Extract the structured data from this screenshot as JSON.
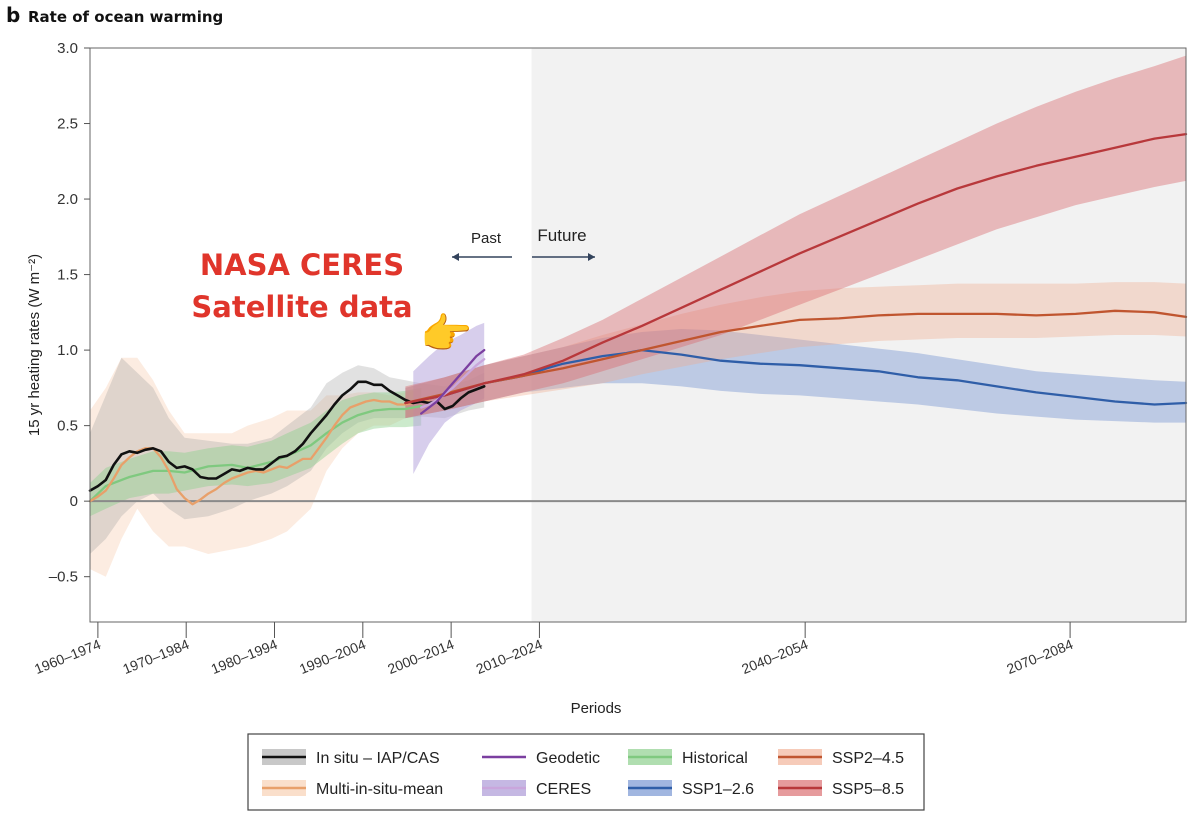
{
  "panel": {
    "letter": "b",
    "title": "Rate of ocean warming"
  },
  "chart_data": {
    "type": "line",
    "title": "Rate of ocean warming",
    "xlabel": "Periods",
    "ylabel": "15 yr heating rates (W m⁻²)",
    "ylim": [
      -0.8,
      3.0
    ],
    "xlim": [
      1960,
      2099
    ],
    "y_ticks": [
      3.0,
      2.5,
      2.0,
      1.5,
      1.0,
      0.5,
      0,
      -0.5
    ],
    "y_tick_labels": [
      "3.0",
      "2.5",
      "2.0",
      "1.5",
      "1.0",
      "0.5",
      "0",
      "–0.5"
    ],
    "x_ticks": [
      {
        "label": "1960–1974",
        "x": 1961
      },
      {
        "label": "1970–1984",
        "x": 1972.2
      },
      {
        "label": "1980–1994",
        "x": 1983.4
      },
      {
        "label": "1990–2004",
        "x": 1994.6
      },
      {
        "label": "2000–2014",
        "x": 2005.8
      },
      {
        "label": "2010–2024",
        "x": 2017
      },
      {
        "label": "2040–2054",
        "x": 2050.7
      },
      {
        "label": "2070–2084",
        "x": 2084.3
      }
    ],
    "future_shading_start": 2016,
    "zero_line": 0,
    "series": [
      {
        "name": "In situ – IAP/CAS",
        "key": "insitu",
        "color": "#111111",
        "x": [
          1960,
          1961,
          1962,
          1963,
          1964,
          1965,
          1966,
          1967,
          1968,
          1969,
          1970,
          1971,
          1972,
          1973,
          1974,
          1975,
          1976,
          1977,
          1978,
          1979,
          1980,
          1981,
          1982,
          1983,
          1984,
          1985,
          1986,
          1987,
          1988,
          1989,
          1990,
          1991,
          1992,
          1993,
          1994,
          1995,
          1996,
          1997,
          1998,
          1999,
          2000,
          2001,
          2002,
          2003,
          2004,
          2005,
          2006,
          2007,
          2008,
          2009,
          2010
        ],
        "values": [
          0.07,
          0.1,
          0.14,
          0.24,
          0.31,
          0.33,
          0.32,
          0.34,
          0.35,
          0.33,
          0.26,
          0.22,
          0.23,
          0.21,
          0.16,
          0.15,
          0.15,
          0.18,
          0.21,
          0.2,
          0.22,
          0.21,
          0.21,
          0.25,
          0.29,
          0.3,
          0.33,
          0.38,
          0.45,
          0.51,
          0.57,
          0.64,
          0.7,
          0.74,
          0.79,
          0.79,
          0.77,
          0.77,
          0.73,
          0.7,
          0.67,
          0.65,
          0.66,
          0.65,
          0.66,
          0.61,
          0.63,
          0.68,
          0.72,
          0.74,
          0.76
        ]
      },
      {
        "name": "Multi-in-situ-mean",
        "key": "multi",
        "color": "#e8a06a",
        "x": [
          1960,
          1961,
          1962,
          1963,
          1964,
          1965,
          1966,
          1967,
          1968,
          1969,
          1970,
          1971,
          1972,
          1973,
          1974,
          1975,
          1976,
          1977,
          1978,
          1979,
          1980,
          1981,
          1982,
          1983,
          1984,
          1985,
          1986,
          1987,
          1988,
          1989,
          1990,
          1991,
          1992,
          1993,
          1994,
          1995,
          1996,
          1997,
          1998,
          1999,
          2000,
          2001,
          2002,
          2003
        ],
        "values": [
          0.0,
          0.03,
          0.07,
          0.15,
          0.24,
          0.29,
          0.33,
          0.35,
          0.35,
          0.29,
          0.2,
          0.08,
          0.02,
          -0.02,
          0.01,
          0.05,
          0.08,
          0.12,
          0.15,
          0.17,
          0.19,
          0.2,
          0.19,
          0.21,
          0.23,
          0.22,
          0.25,
          0.28,
          0.28,
          0.35,
          0.42,
          0.5,
          0.57,
          0.62,
          0.64,
          0.66,
          0.67,
          0.66,
          0.66,
          0.64,
          0.64,
          0.65,
          0.66,
          0.67
        ]
      },
      {
        "name": "Geodetic",
        "key": "geodetic",
        "color": "#7b3fa0",
        "x": [
          2002,
          2003,
          2004,
          2005,
          2006,
          2007,
          2008,
          2009,
          2010
        ],
        "values": [
          0.58,
          0.62,
          0.66,
          0.72,
          0.78,
          0.84,
          0.9,
          0.96,
          1.0
        ]
      },
      {
        "name": "CERES",
        "key": "ceres",
        "color": "#c9a6dc",
        "x": [
          2002,
          2003,
          2004,
          2005,
          2006,
          2007,
          2008,
          2009,
          2010
        ],
        "values": [
          0.62,
          0.64,
          0.67,
          0.71,
          0.75,
          0.8,
          0.85,
          0.9,
          0.94
        ]
      },
      {
        "name": "Historical",
        "key": "historical",
        "color": "#7fc97f",
        "x": [
          1960,
          1962,
          1965,
          1968,
          1970,
          1972,
          1975,
          1978,
          1980,
          1983,
          1985,
          1988,
          1990,
          1992,
          1994,
          1996,
          1998,
          2000,
          2002
        ],
        "values": [
          0.0,
          0.1,
          0.16,
          0.2,
          0.2,
          0.19,
          0.23,
          0.24,
          0.22,
          0.26,
          0.3,
          0.37,
          0.45,
          0.52,
          0.57,
          0.6,
          0.61,
          0.61,
          0.63
        ]
      },
      {
        "name": "SSP1–2.6",
        "key": "ssp126",
        "color": "#2f5ea8",
        "x": [
          2000,
          2005,
          2010,
          2015,
          2018,
          2020,
          2022,
          2025,
          2028,
          2030,
          2035,
          2040,
          2045,
          2050,
          2055,
          2060,
          2065,
          2070,
          2075,
          2080,
          2085,
          2090,
          2095,
          2099
        ],
        "values": [
          0.65,
          0.7,
          0.78,
          0.83,
          0.88,
          0.91,
          0.93,
          0.96,
          0.98,
          1.0,
          0.97,
          0.93,
          0.91,
          0.9,
          0.88,
          0.86,
          0.82,
          0.8,
          0.76,
          0.72,
          0.69,
          0.66,
          0.64,
          0.65
        ]
      },
      {
        "name": "SSP2–4.5",
        "key": "ssp245",
        "color": "#c0552f",
        "x": [
          2000,
          2005,
          2010,
          2015,
          2018,
          2020,
          2025,
          2030,
          2035,
          2040,
          2045,
          2050,
          2055,
          2060,
          2065,
          2070,
          2075,
          2080,
          2085,
          2090,
          2095,
          2099
        ],
        "values": [
          0.65,
          0.71,
          0.78,
          0.83,
          0.86,
          0.88,
          0.94,
          1.0,
          1.06,
          1.12,
          1.16,
          1.2,
          1.21,
          1.23,
          1.24,
          1.24,
          1.24,
          1.23,
          1.24,
          1.26,
          1.25,
          1.22
        ]
      },
      {
        "name": "SSP5–8.5",
        "key": "ssp585",
        "color": "#b8383b",
        "x": [
          2000,
          2005,
          2010,
          2015,
          2020,
          2025,
          2030,
          2035,
          2040,
          2045,
          2050,
          2055,
          2060,
          2065,
          2070,
          2075,
          2080,
          2085,
          2090,
          2095,
          2099
        ],
        "values": [
          0.65,
          0.7,
          0.78,
          0.84,
          0.93,
          1.05,
          1.16,
          1.28,
          1.4,
          1.52,
          1.64,
          1.75,
          1.86,
          1.97,
          2.07,
          2.15,
          2.22,
          2.28,
          2.34,
          2.4,
          2.43
        ]
      }
    ],
    "bands": [
      {
        "name": "Multi-in-situ-mean range",
        "key": "multi",
        "color": "#f7c9a8",
        "opacity": 0.35,
        "x": [
          1960,
          1962,
          1964,
          1966,
          1968,
          1970,
          1972,
          1975,
          1978,
          1980,
          1983,
          1985,
          1988,
          1990,
          1992,
          1994,
          1996,
          1998,
          2000,
          2002
        ],
        "lower": [
          -0.45,
          -0.5,
          -0.25,
          -0.05,
          -0.2,
          -0.3,
          -0.3,
          -0.35,
          -0.32,
          -0.3,
          -0.25,
          -0.2,
          -0.05,
          0.2,
          0.35,
          0.45,
          0.5,
          0.5,
          0.55,
          0.58
        ],
        "upper": [
          0.6,
          0.75,
          0.95,
          0.95,
          0.8,
          0.6,
          0.45,
          0.45,
          0.45,
          0.5,
          0.55,
          0.6,
          0.6,
          0.7,
          0.7,
          0.72,
          0.72,
          0.7,
          0.72,
          0.74
        ]
      },
      {
        "name": "In situ – IAP/CAS range",
        "key": "insitu",
        "color": "#9a9a9a",
        "opacity": 0.3,
        "x": [
          1960,
          1962,
          1964,
          1966,
          1968,
          1970,
          1972,
          1975,
          1978,
          1980,
          1983,
          1985,
          1988,
          1990,
          1992,
          1994,
          1996,
          1998,
          2000,
          2002,
          2005,
          2008,
          2010
        ],
        "lower": [
          -0.35,
          -0.25,
          -0.1,
          0.0,
          0.05,
          -0.05,
          -0.12,
          -0.1,
          -0.05,
          0.0,
          0.05,
          0.1,
          0.2,
          0.35,
          0.45,
          0.52,
          0.55,
          0.55,
          0.55,
          0.56,
          0.55,
          0.6,
          0.62
        ],
        "upper": [
          0.45,
          0.7,
          0.95,
          0.85,
          0.75,
          0.55,
          0.42,
          0.4,
          0.38,
          0.38,
          0.42,
          0.5,
          0.62,
          0.78,
          0.85,
          0.9,
          0.88,
          0.82,
          0.8,
          0.78,
          0.76,
          0.8,
          0.85
        ]
      },
      {
        "name": "Historical range",
        "key": "historical",
        "color": "#8fd08f",
        "opacity": 0.45,
        "x": [
          1960,
          1962,
          1965,
          1968,
          1970,
          1972,
          1975,
          1978,
          1980,
          1983,
          1985,
          1988,
          1990,
          1992,
          1994,
          1996,
          1998,
          2000,
          2002
        ],
        "lower": [
          -0.1,
          -0.05,
          0.02,
          0.05,
          0.05,
          0.07,
          0.1,
          0.11,
          0.1,
          0.12,
          0.16,
          0.22,
          0.3,
          0.38,
          0.45,
          0.48,
          0.49,
          0.49,
          0.5
        ],
        "upper": [
          0.12,
          0.22,
          0.28,
          0.33,
          0.33,
          0.32,
          0.35,
          0.37,
          0.36,
          0.4,
          0.45,
          0.52,
          0.6,
          0.67,
          0.7,
          0.72,
          0.72,
          0.73,
          0.75
        ]
      },
      {
        "name": "CERES range",
        "key": "ceres",
        "color": "#b7a6dc",
        "opacity": 0.55,
        "x": [
          2001,
          2003,
          2005,
          2007,
          2009,
          2010
        ],
        "lower": [
          0.18,
          0.38,
          0.52,
          0.6,
          0.65,
          0.68
        ],
        "upper": [
          0.86,
          0.96,
          1.05,
          1.1,
          1.16,
          1.18
        ]
      },
      {
        "name": "SSP1–2.6 range",
        "key": "ssp126",
        "color": "#6f8fd0",
        "opacity": 0.4,
        "x": [
          2000,
          2005,
          2010,
          2015,
          2020,
          2025,
          2030,
          2035,
          2040,
          2045,
          2050,
          2055,
          2060,
          2065,
          2070,
          2075,
          2080,
          2085,
          2090,
          2095,
          2099
        ],
        "lower": [
          0.55,
          0.6,
          0.66,
          0.72,
          0.75,
          0.78,
          0.78,
          0.76,
          0.73,
          0.71,
          0.7,
          0.68,
          0.66,
          0.64,
          0.61,
          0.58,
          0.56,
          0.54,
          0.53,
          0.52,
          0.52
        ],
        "upper": [
          0.75,
          0.82,
          0.9,
          0.96,
          1.02,
          1.08,
          1.12,
          1.14,
          1.13,
          1.1,
          1.07,
          1.04,
          1.01,
          0.98,
          0.94,
          0.9,
          0.86,
          0.84,
          0.82,
          0.8,
          0.79
        ]
      },
      {
        "name": "SSP2–4.5 range",
        "key": "ssp245",
        "color": "#f0a98a",
        "opacity": 0.35,
        "x": [
          2000,
          2005,
          2010,
          2015,
          2020,
          2025,
          2030,
          2035,
          2040,
          2045,
          2050,
          2055,
          2060,
          2065,
          2070,
          2075,
          2080,
          2085,
          2090,
          2095,
          2099
        ],
        "lower": [
          0.55,
          0.6,
          0.66,
          0.7,
          0.74,
          0.78,
          0.84,
          0.89,
          0.94,
          0.98,
          1.02,
          1.04,
          1.06,
          1.07,
          1.08,
          1.08,
          1.08,
          1.09,
          1.1,
          1.1,
          1.09
        ],
        "upper": [
          0.75,
          0.82,
          0.9,
          0.96,
          1.02,
          1.1,
          1.17,
          1.24,
          1.3,
          1.35,
          1.39,
          1.41,
          1.42,
          1.43,
          1.44,
          1.44,
          1.44,
          1.44,
          1.45,
          1.45,
          1.44
        ]
      },
      {
        "name": "SSP5–8.5 range",
        "key": "ssp585",
        "color": "#d96a6d",
        "opacity": 0.42,
        "x": [
          2000,
          2005,
          2010,
          2015,
          2020,
          2025,
          2030,
          2035,
          2040,
          2045,
          2050,
          2055,
          2060,
          2065,
          2070,
          2075,
          2080,
          2085,
          2090,
          2095,
          2099
        ],
        "lower": [
          0.55,
          0.6,
          0.66,
          0.72,
          0.78,
          0.86,
          0.94,
          1.02,
          1.1,
          1.2,
          1.3,
          1.4,
          1.5,
          1.6,
          1.7,
          1.8,
          1.88,
          1.96,
          2.02,
          2.08,
          2.12
        ],
        "upper": [
          0.76,
          0.82,
          0.9,
          0.97,
          1.08,
          1.2,
          1.34,
          1.48,
          1.62,
          1.76,
          1.9,
          2.02,
          2.14,
          2.26,
          2.38,
          2.5,
          2.61,
          2.71,
          2.8,
          2.88,
          2.95
        ]
      }
    ],
    "legend": {
      "placement": "bottom-center",
      "entries": [
        {
          "label": "In situ – IAP/CAS",
          "key": "insitu"
        },
        {
          "label": "Geodetic",
          "key": "geodetic"
        },
        {
          "label": "Historical",
          "key": "historical"
        },
        {
          "label": "SSP2–4.5",
          "key": "ssp245"
        },
        {
          "label": "Multi-in-situ-mean",
          "key": "multi"
        },
        {
          "label": "CERES",
          "key": "ceres"
        },
        {
          "label": "SSP1–2.6",
          "key": "ssp126"
        },
        {
          "label": "SSP5–8.5",
          "key": "ssp585"
        }
      ]
    },
    "annotations": {
      "past": "Past",
      "future": "Future",
      "ceres_line1": "NASA CERES",
      "ceres_line2": "Satellite data",
      "pointer_emoji": "👉"
    }
  }
}
